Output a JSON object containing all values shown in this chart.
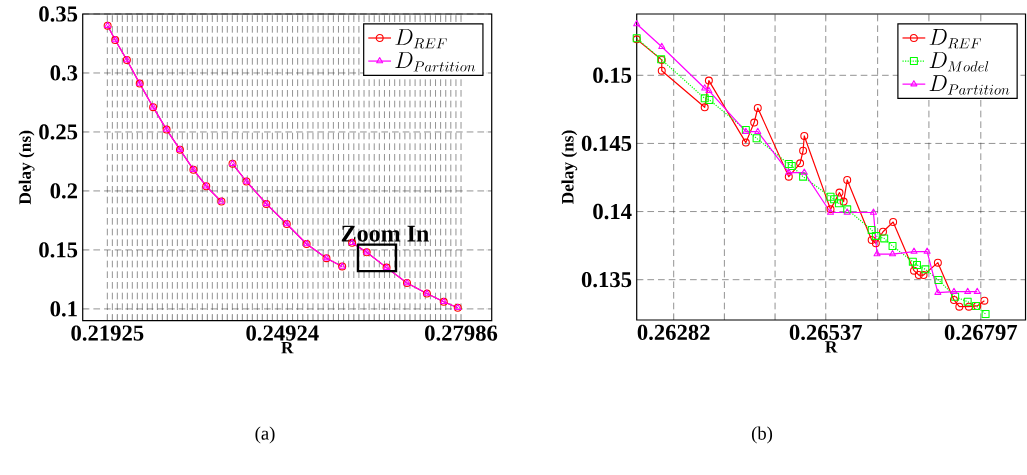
{
  "chart_data": [
    {
      "type": "line",
      "xlabel": "R",
      "ylabel": "Delay (ns)",
      "xlim": [
        0.21503,
        0.28512
      ],
      "ylim": [
        0.09,
        0.35
      ],
      "xticks": [
        0.21925,
        {
          "value": 0.22011,
          "label": null
        },
        {
          "value": 0.22096,
          "label": null
        },
        {
          "value": 0.22182,
          "label": null
        },
        {
          "value": 0.22268,
          "label": null
        },
        {
          "value": 0.22353,
          "label": null
        },
        {
          "value": 0.22439,
          "label": null
        },
        {
          "value": 0.22525,
          "label": null
        },
        {
          "value": 0.2261,
          "label": null
        },
        {
          "value": 0.22696,
          "label": null
        },
        {
          "value": 0.22782,
          "label": null
        },
        {
          "value": 0.22868,
          "label": null
        },
        {
          "value": 0.22953,
          "label": null
        },
        {
          "value": 0.23039,
          "label": null
        },
        {
          "value": 0.23125,
          "label": null
        },
        {
          "value": 0.2321,
          "label": null
        },
        {
          "value": 0.23296,
          "label": null
        },
        {
          "value": 0.23382,
          "label": null
        },
        {
          "value": 0.23467,
          "label": null
        },
        {
          "value": 0.23553,
          "label": null
        },
        {
          "value": 0.23639,
          "label": null
        },
        {
          "value": 0.23724,
          "label": null
        },
        {
          "value": 0.2381,
          "label": null
        },
        {
          "value": 0.23896,
          "label": null
        },
        {
          "value": 0.23981,
          "label": null
        },
        {
          "value": 0.24067,
          "label": null
        },
        {
          "value": 0.24153,
          "label": null
        },
        {
          "value": 0.24239,
          "label": null
        },
        {
          "value": 0.24324,
          "label": null
        },
        {
          "value": 0.2441,
          "label": null
        },
        {
          "value": 0.24496,
          "label": null
        },
        {
          "value": 0.24581,
          "label": null
        },
        {
          "value": 0.24667,
          "label": null
        },
        {
          "value": 0.24753,
          "label": null
        },
        {
          "value": 0.24838,
          "label": null
        },
        0.24924,
        {
          "value": 0.25011,
          "label": null
        },
        {
          "value": 0.25099,
          "label": null
        },
        {
          "value": 0.25186,
          "label": null
        },
        {
          "value": 0.25274,
          "label": null
        },
        {
          "value": 0.25361,
          "label": null
        },
        {
          "value": 0.25449,
          "label": null
        },
        {
          "value": 0.25536,
          "label": null
        },
        {
          "value": 0.25624,
          "label": null
        },
        {
          "value": 0.25711,
          "label": null
        },
        {
          "value": 0.25799,
          "label": null
        },
        {
          "value": 0.25886,
          "label": null
        },
        {
          "value": 0.25974,
          "label": null
        },
        {
          "value": 0.26061,
          "label": null
        },
        {
          "value": 0.26149,
          "label": null
        },
        {
          "value": 0.26236,
          "label": null
        },
        {
          "value": 0.26324,
          "label": null
        },
        {
          "value": 0.26411,
          "label": null
        },
        {
          "value": 0.26499,
          "label": null
        },
        {
          "value": 0.26586,
          "label": null
        },
        {
          "value": 0.26674,
          "label": null
        },
        {
          "value": 0.26761,
          "label": null
        },
        {
          "value": 0.26849,
          "label": null
        },
        {
          "value": 0.26936,
          "label": null
        },
        {
          "value": 0.27024,
          "label": null
        },
        {
          "value": 0.27111,
          "label": null
        },
        {
          "value": 0.27199,
          "label": null
        },
        {
          "value": 0.27286,
          "label": null
        },
        {
          "value": 0.27374,
          "label": null
        },
        {
          "value": 0.27461,
          "label": null
        },
        {
          "value": 0.27549,
          "label": null
        },
        {
          "value": 0.27636,
          "label": null
        },
        {
          "value": 0.27724,
          "label": null
        },
        {
          "value": 0.27811,
          "label": null
        },
        {
          "value": 0.27899,
          "label": null
        },
        0.27986
      ],
      "yticks": [
        0.1,
        0.15,
        0.2,
        0.25,
        0.3,
        0.35
      ],
      "grid": true,
      "legend": "top right",
      "series": [
        {
          "name": "D_{REF}",
          "color": "#ff0000",
          "marker": "circle",
          "line_style": "solid",
          "x": [
            0.2193,
            0.2206,
            0.2226,
            0.2248,
            0.2271,
            0.2294,
            0.2317,
            0.234,
            0.2362,
            0.2388,
            null,
            0.2407,
            0.2431,
            0.2465,
            0.25,
            0.2534,
            0.2568,
            0.2595,
            null,
            0.2612,
            0.2637,
            0.2671,
            0.2706,
            0.274,
            0.2769,
            0.2793
          ],
          "values": [
            0.34,
            0.328,
            0.311,
            0.291,
            0.271,
            0.252,
            0.235,
            0.218,
            0.204,
            0.191,
            null,
            0.223,
            0.208,
            0.189,
            0.172,
            0.155,
            0.143,
            0.136,
            null,
            0.156,
            0.148,
            0.135,
            0.122,
            0.113,
            0.106,
            0.101
          ]
        },
        {
          "name": "D_{Partition}",
          "color": "#ff00ff",
          "marker": "triangle",
          "line_style": "solid",
          "x": [
            0.2193,
            0.2206,
            0.2226,
            0.2248,
            0.2271,
            0.2294,
            0.2317,
            0.234,
            0.2362,
            0.2388,
            null,
            0.2407,
            0.2431,
            0.2465,
            0.25,
            0.2534,
            0.2568,
            0.2595,
            null,
            0.2612,
            0.2637,
            0.2671,
            0.2706,
            0.274,
            0.2769,
            0.2793
          ],
          "values": [
            0.34,
            0.328,
            0.311,
            0.291,
            0.271,
            0.252,
            0.235,
            0.218,
            0.204,
            0.191,
            null,
            0.223,
            0.208,
            0.189,
            0.172,
            0.155,
            0.143,
            0.136,
            null,
            0.156,
            0.148,
            0.135,
            0.122,
            0.113,
            0.106,
            0.101
          ]
        }
      ],
      "annotations": [
        "Zoom In",
        "(a)"
      ]
    },
    {
      "type": "line",
      "xlabel": "R",
      "ylabel": "Delay (ns)",
      "xlim": [
        0.2622,
        0.26872
      ],
      "ylim": [
        0.13204,
        0.1545
      ],
      "xticks": [
        0.26282,
        {
          "value": 0.26367,
          "label": null
        },
        {
          "value": 0.26452,
          "label": null
        },
        0.26537,
        {
          "value": 0.26624,
          "label": null
        },
        {
          "value": 0.2671,
          "label": null
        },
        0.26797
      ],
      "yticks": [
        0.135,
        0.14,
        0.145,
        0.15
      ],
      "grid": true,
      "legend": "top right",
      "series": [
        {
          "name": "D_{REF}",
          "color": "#ff0000",
          "marker": "circle",
          "line_style": "solid",
          "x": [
            0.2622,
            0.26262,
            0.26262,
            0.26334,
            0.26341,
            0.26403,
            0.26417,
            0.26423,
            0.26475,
            0.26494,
            0.26499,
            0.26501,
            0.26545,
            0.2656,
            0.26567,
            0.26573,
            0.26614,
            0.26621,
            0.26633,
            0.2665,
            0.26685,
            0.26693,
            0.26701,
            0.26725,
            0.26752,
            0.26761,
            0.26777,
            0.26791,
            0.26803
          ],
          "values": [
            0.15264,
            0.15113,
            0.15034,
            0.14765,
            0.14961,
            0.14506,
            0.14653,
            0.1476,
            0.14256,
            0.14354,
            0.14447,
            0.14555,
            0.14016,
            0.14139,
            0.14073,
            0.14232,
            0.13791,
            0.13767,
            0.13852,
            0.13923,
            0.13566,
            0.13534,
            0.13534,
            0.13625,
            0.13351,
            0.13302,
            0.13302,
            0.13307,
            0.13346
          ]
        },
        {
          "name": "D_{Model}",
          "color": "#00ff00",
          "marker": "square",
          "line_style": "dotted",
          "x": [
            0.2622,
            0.26261,
            0.26334,
            0.26342,
            0.26403,
            0.26421,
            0.26475,
            0.2648,
            0.26499,
            0.26545,
            0.26551,
            0.26559,
            0.26573,
            0.26614,
            0.26621,
            0.26635,
            0.26649,
            0.26683,
            0.2669,
            0.26704,
            0.26726,
            0.26754,
            0.26775,
            0.26789,
            0.26805
          ],
          "values": [
            0.15272,
            0.15117,
            0.14831,
            0.14819,
            0.14599,
            0.14538,
            0.14349,
            0.14334,
            0.14256,
            0.14109,
            0.1409,
            0.1406,
            0.14016,
            0.13865,
            0.13821,
            0.13803,
            0.13747,
            0.13632,
            0.13608,
            0.13576,
            0.13498,
            0.13375,
            0.13338,
            0.13307,
            0.13248
          ]
        },
        {
          "name": "D_{Partition}",
          "color": "#ff00ff",
          "marker": "triangle",
          "line_style": "solid",
          "x": [
            0.2622,
            0.26262,
            0.26334,
            0.26341,
            0.26403,
            0.26423,
            0.26475,
            0.26501,
            0.26545,
            0.26573,
            0.26617,
            0.26623,
            0.26649,
            0.26685,
            0.26707,
            0.26725,
            0.26752,
            0.26775,
            0.26791
          ],
          "values": [
            0.15377,
            0.1521,
            0.14905,
            0.14887,
            0.14586,
            0.14586,
            0.14286,
            0.14286,
            0.13993,
            0.13993,
            0.13993,
            0.13688,
            0.13688,
            0.13706,
            0.13706,
            0.13405,
            0.13412,
            0.13412,
            0.13412
          ]
        }
      ],
      "annotations": [
        "(b)"
      ]
    }
  ]
}
